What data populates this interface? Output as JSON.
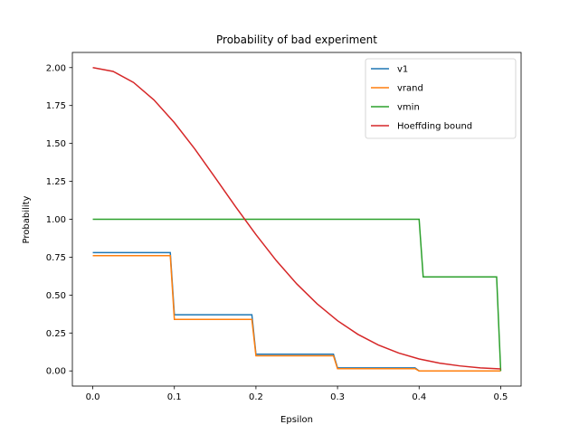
{
  "chart_data": {
    "type": "line",
    "title": "Probability of bad experiment",
    "xlabel": "Epsilon",
    "ylabel": "Probability",
    "xlim": [
      -0.025,
      0.525
    ],
    "ylim": [
      -0.1,
      2.1
    ],
    "xticks": [
      0.0,
      0.1,
      0.2,
      0.3,
      0.4,
      0.5
    ],
    "xtick_labels": [
      "0.0",
      "0.1",
      "0.2",
      "0.3",
      "0.4",
      "0.5"
    ],
    "yticks": [
      0.0,
      0.25,
      0.5,
      0.75,
      1.0,
      1.25,
      1.5,
      1.75,
      2.0
    ],
    "ytick_labels": [
      "0.00",
      "0.25",
      "0.50",
      "0.75",
      "1.00",
      "1.25",
      "1.50",
      "1.75",
      "2.00"
    ],
    "grid": false,
    "legend_position": "top-right",
    "series": [
      {
        "name": "v1",
        "color": "#1f77b4",
        "x": [
          0.0,
          0.095,
          0.1,
          0.195,
          0.2,
          0.295,
          0.3,
          0.395,
          0.4,
          0.495,
          0.5
        ],
        "y": [
          0.78,
          0.78,
          0.37,
          0.37,
          0.11,
          0.11,
          0.02,
          0.02,
          0.0,
          0.0,
          0.0
        ]
      },
      {
        "name": "vrand",
        "color": "#ff7f0e",
        "x": [
          0.0,
          0.095,
          0.1,
          0.195,
          0.2,
          0.295,
          0.3,
          0.395,
          0.4,
          0.495,
          0.5
        ],
        "y": [
          0.76,
          0.76,
          0.34,
          0.34,
          0.1,
          0.1,
          0.015,
          0.015,
          0.0,
          0.0,
          0.0
        ]
      },
      {
        "name": "vmin",
        "color": "#2ca02c",
        "x": [
          0.0,
          0.4,
          0.405,
          0.495,
          0.5
        ],
        "y": [
          1.0,
          1.0,
          0.62,
          0.62,
          0.0
        ]
      },
      {
        "name": "Hoeffding bound",
        "color": "#d62728",
        "x": [
          0.0,
          0.025,
          0.05,
          0.075,
          0.1,
          0.125,
          0.15,
          0.175,
          0.2,
          0.225,
          0.25,
          0.275,
          0.3,
          0.325,
          0.35,
          0.375,
          0.4,
          0.425,
          0.45,
          0.475,
          0.5
        ],
        "y": [
          2.0,
          1.975,
          1.902,
          1.787,
          1.637,
          1.464,
          1.275,
          1.083,
          0.899,
          0.727,
          0.574,
          0.442,
          0.331,
          0.241,
          0.171,
          0.118,
          0.079,
          0.051,
          0.033,
          0.02,
          0.013
        ]
      }
    ]
  }
}
